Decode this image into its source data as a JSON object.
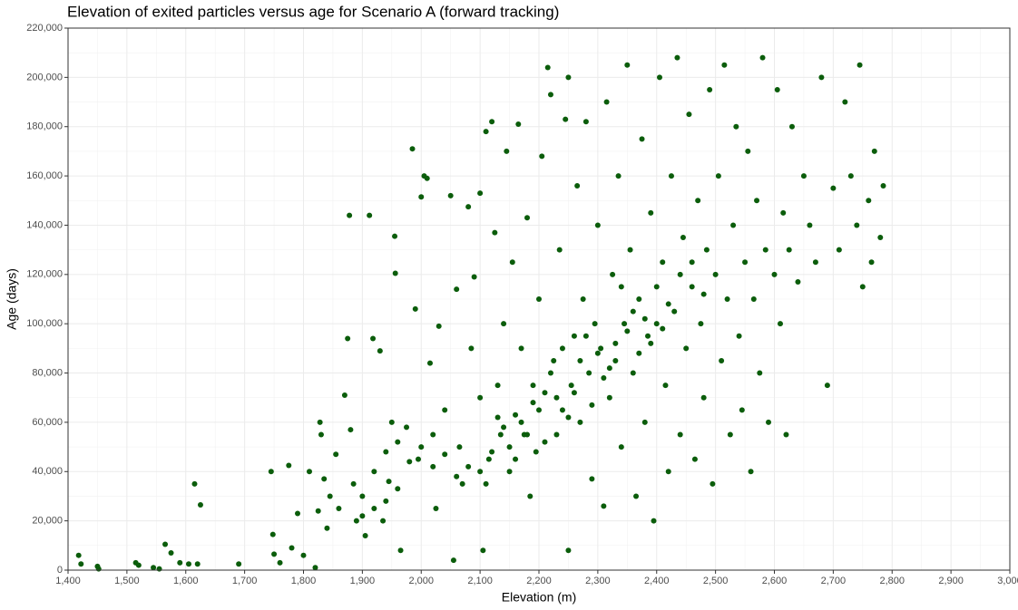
{
  "chart_data": {
    "type": "scatter",
    "title": "Elevation of exited particles versus age for Scenario A (forward tracking)",
    "x_label": "Elevation (m)",
    "y_label": "Age (days)",
    "color": "#0b5d0b",
    "grid": true,
    "xlim": [
      1400,
      3000
    ],
    "xticks": [
      {
        "value": 1400,
        "label": "1,400"
      },
      {
        "value": 1500,
        "label": "1,500"
      },
      {
        "value": 1600,
        "label": "1,600"
      },
      {
        "value": 1700,
        "label": "1,700"
      },
      {
        "value": 1800,
        "label": "1,800"
      },
      {
        "value": 1900,
        "label": "1,900"
      },
      {
        "value": 2000,
        "label": "2,000"
      },
      {
        "value": 2100,
        "label": "2,100"
      },
      {
        "value": 2200,
        "label": "2,200"
      },
      {
        "value": 2300,
        "label": "2,300"
      },
      {
        "value": 2400,
        "label": "2,400"
      },
      {
        "value": 2500,
        "label": "2,500"
      },
      {
        "value": 2600,
        "label": "2,600"
      },
      {
        "value": 2700,
        "label": "2,700"
      },
      {
        "value": 2800,
        "label": "2,800"
      },
      {
        "value": 2900,
        "label": "2,900"
      },
      {
        "value": 3000,
        "label": "3,000"
      }
    ],
    "ylim": [
      0,
      220000
    ],
    "yticks": [
      0,
      {
        "value": 20000,
        "label": "20,000"
      },
      {
        "value": 40000,
        "label": "40,000"
      },
      {
        "value": 60000,
        "label": "60,000"
      },
      {
        "value": 80000,
        "label": "80,000"
      },
      {
        "value": 100000,
        "label": "100,000"
      },
      {
        "value": 120000,
        "label": "120,000"
      },
      {
        "value": 140000,
        "label": "140,000"
      },
      {
        "value": 160000,
        "label": "160,000"
      },
      {
        "value": 180000,
        "label": "180,000"
      },
      {
        "value": 200000,
        "label": "200,000"
      },
      {
        "value": 220000,
        "label": "220,000"
      }
    ],
    "x": [
      1418,
      1422,
      1450,
      1452,
      1515,
      1520,
      1545,
      1555,
      1565,
      1575,
      1590,
      1605,
      1615,
      1625,
      1620,
      1690,
      1745,
      1748,
      1750,
      1760,
      1775,
      1780,
      1790,
      1800,
      1810,
      1820,
      1825,
      1828,
      1830,
      1835,
      1840,
      1845,
      1855,
      1860,
      1870,
      1875,
      1878,
      1880,
      1885,
      1890,
      1900,
      1905,
      1912,
      1918,
      1920,
      1930,
      1935,
      1940,
      1945,
      1950,
      1955,
      1956,
      1960,
      1965,
      1975,
      1985,
      1990,
      1995,
      2000,
      2005,
      2010,
      2015,
      2020,
      2025,
      2030,
      2040,
      2050,
      2055,
      2060,
      2065,
      2070,
      2080,
      2085,
      2090,
      2100,
      2100,
      2105,
      2110,
      2115,
      2120,
      2125,
      2130,
      2135,
      2140,
      2145,
      2150,
      2155,
      2160,
      2165,
      2170,
      2175,
      2180,
      2185,
      2190,
      2195,
      2200,
      2205,
      2210,
      2215,
      2220,
      2225,
      2230,
      2235,
      2240,
      2245,
      2250,
      2250,
      2255,
      2260,
      2265,
      2270,
      2275,
      2280,
      2285,
      2290,
      2295,
      2300,
      2305,
      2310,
      2315,
      2320,
      2325,
      2330,
      2335,
      2340,
      2345,
      2350,
      2355,
      2360,
      2365,
      2370,
      2375,
      2380,
      2385,
      2390,
      2395,
      2400,
      2405,
      2410,
      2415,
      2420,
      2425,
      2430,
      2435,
      2440,
      2445,
      2450,
      2455,
      2460,
      2465,
      2470,
      2475,
      2480,
      2485,
      2490,
      2495,
      2500,
      2505,
      2510,
      2515,
      2520,
      2525,
      2530,
      2535,
      2540,
      2545,
      2550,
      2555,
      2560,
      2565,
      2570,
      2575,
      2580,
      2585,
      2590,
      2600,
      2605,
      2610,
      2615,
      2620,
      2625,
      2630,
      2640,
      2650,
      2660,
      2670,
      2680,
      2690,
      2700,
      2710,
      2720,
      2730,
      2740,
      2745,
      2750,
      2760,
      2765,
      2770,
      2780,
      2785,
      2150,
      2160,
      2170,
      2180,
      2190,
      2200,
      2210,
      2220,
      2230,
      2240,
      2260,
      2270,
      2280,
      2300,
      2310,
      2330,
      2350,
      2360,
      2380,
      2400,
      2410,
      2420,
      2440,
      2460,
      2480,
      2100,
      2110,
      2120,
      2080,
      2060,
      2040,
      2020,
      2000,
      1980,
      1960,
      1940,
      1920,
      1900,
      2130,
      2140,
      2250,
      2290,
      2320,
      2340,
      2370,
      2390
    ],
    "values": [
      6000,
      2500,
      1500,
      500,
      3000,
      2000,
      1000,
      500,
      10500,
      7000,
      3000,
      2500,
      35000,
      26500,
      2500,
      2500,
      40000,
      14500,
      6500,
      3000,
      42500,
      9000,
      23000,
      6000,
      40000,
      1000,
      24000,
      60000,
      55000,
      37000,
      17000,
      30000,
      47000,
      25000,
      71000,
      94000,
      144000,
      57000,
      35000,
      20000,
      30000,
      14000,
      144000,
      94000,
      40000,
      89000,
      20000,
      48000,
      36000,
      60000,
      135500,
      120500,
      52000,
      8000,
      58000,
      171000,
      106000,
      45000,
      151500,
      160000,
      159000,
      84000,
      42000,
      25000,
      99000,
      65000,
      152000,
      4000,
      114000,
      50000,
      35000,
      147500,
      90000,
      119000,
      153000,
      70000,
      8000,
      178000,
      45000,
      182000,
      137000,
      75000,
      55000,
      100000,
      170000,
      40000,
      125000,
      63000,
      181000,
      90000,
      55000,
      143000,
      30000,
      68000,
      48000,
      110000,
      168000,
      72000,
      204000,
      193000,
      85000,
      55000,
      130000,
      65000,
      183000,
      200000,
      8000,
      75000,
      95000,
      156000,
      60000,
      110000,
      182000,
      80000,
      37000,
      100000,
      140000,
      90000,
      26000,
      190000,
      70000,
      120000,
      85000,
      160000,
      50000,
      100000,
      205000,
      130000,
      80000,
      30000,
      110000,
      175000,
      60000,
      95000,
      145000,
      20000,
      100000,
      200000,
      125000,
      75000,
      40000,
      160000,
      105000,
      208000,
      55000,
      135000,
      90000,
      185000,
      115000,
      45000,
      150000,
      100000,
      70000,
      130000,
      195000,
      35000,
      120000,
      160000,
      85000,
      205000,
      110000,
      55000,
      140000,
      180000,
      95000,
      65000,
      125000,
      170000,
      40000,
      110000,
      150000,
      80000,
      208000,
      130000,
      60000,
      120000,
      195000,
      100000,
      145000,
      55000,
      130000,
      180000,
      117000,
      160000,
      140000,
      125000,
      200000,
      75000,
      155000,
      130000,
      190000,
      160000,
      140000,
      205000,
      115000,
      150000,
      125000,
      170000,
      135000,
      156000,
      50000,
      45000,
      60000,
      55000,
      75000,
      65000,
      52000,
      80000,
      70000,
      90000,
      72000,
      85000,
      95000,
      88000,
      78000,
      92000,
      97000,
      105000,
      102000,
      115000,
      98000,
      108000,
      120000,
      125000,
      112000,
      40000,
      35000,
      48000,
      42000,
      38000,
      47000,
      55000,
      50000,
      44000,
      33000,
      28000,
      25000,
      22000,
      62000,
      58000,
      62000,
      67000,
      82000,
      115000,
      88000,
      92000
    ]
  }
}
